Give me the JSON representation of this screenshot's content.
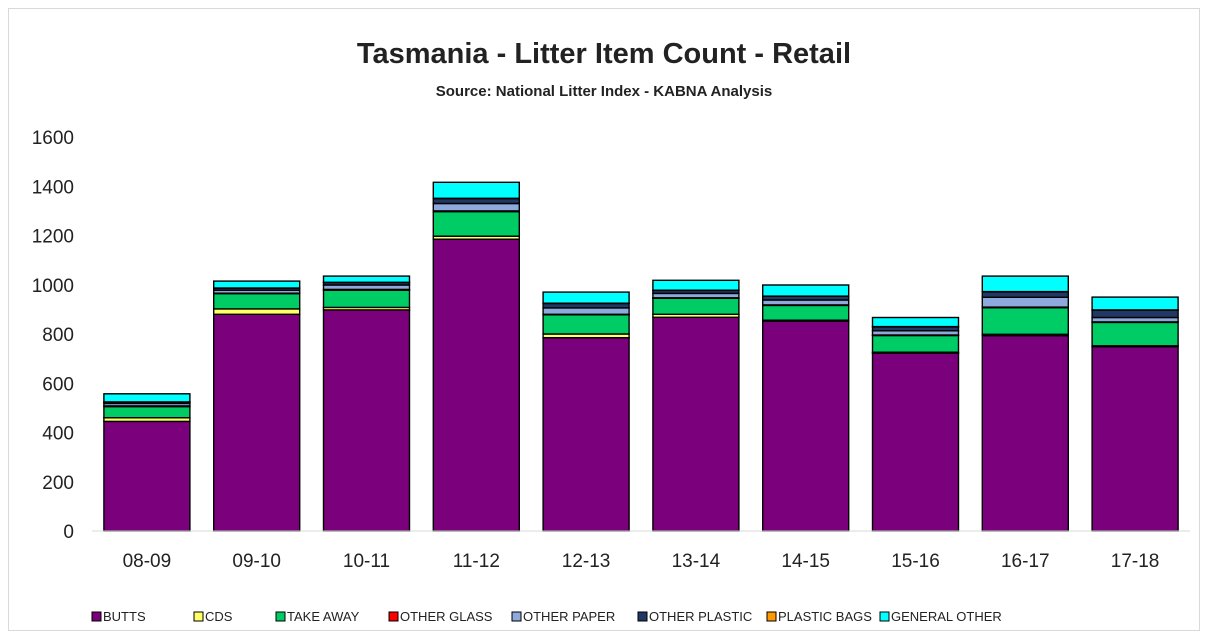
{
  "chart_data": {
    "type": "bar",
    "stacked": true,
    "title": "Tasmania - Litter Item Count - Retail",
    "subtitle": "Source: National Litter Index - KABNA Analysis",
    "xlabel": "",
    "ylabel": "",
    "ylim": [
      0,
      1600
    ],
    "yticks": [
      0,
      200,
      400,
      600,
      800,
      1000,
      1200,
      1400,
      1600
    ],
    "grid": false,
    "legend_position": "bottom",
    "categories": [
      "08-09",
      "09-10",
      "10-11",
      "11-12",
      "12-13",
      "13-14",
      "14-15",
      "15-16",
      "16-17",
      "17-18"
    ],
    "series": [
      {
        "name": "BUTTS",
        "color": "#7B007B",
        "values": [
          445,
          880,
          898,
          1185,
          785,
          868,
          852,
          722,
          793,
          748
        ]
      },
      {
        "name": "CDS",
        "color": "#FFFF66",
        "values": [
          15,
          22,
          10,
          12,
          15,
          12,
          4,
          4,
          6,
          4
        ]
      },
      {
        "name": "TAKE AWAY",
        "color": "#00CC66",
        "values": [
          45,
          62,
          70,
          100,
          78,
          65,
          60,
          68,
          108,
          95
        ]
      },
      {
        "name": "OTHER GLASS",
        "color": "#FF0000",
        "values": [
          3,
          2,
          3,
          3,
          2,
          2,
          2,
          2,
          2,
          2
        ]
      },
      {
        "name": "OTHER PAPER",
        "color": "#8EA9DB",
        "values": [
          10,
          12,
          18,
          30,
          26,
          18,
          20,
          17,
          40,
          18
        ]
      },
      {
        "name": "OTHER PLASTIC",
        "color": "#1F3864",
        "values": [
          5,
          8,
          10,
          20,
          18,
          12,
          15,
          16,
          22,
          30
        ]
      },
      {
        "name": "PLASTIC BAGS",
        "color": "#FF9900",
        "values": [
          1,
          1,
          1,
          1,
          1,
          1,
          1,
          1,
          1,
          1
        ]
      },
      {
        "name": "GENERAL OTHER",
        "color": "#00FFFF",
        "values": [
          33,
          28,
          25,
          65,
          45,
          40,
          45,
          37,
          63,
          52
        ]
      }
    ]
  }
}
